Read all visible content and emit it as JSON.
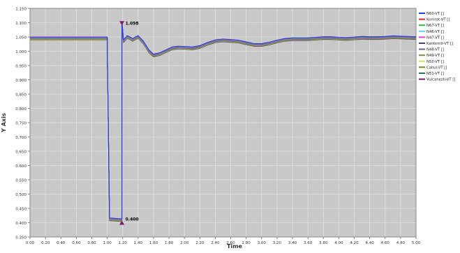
{
  "chart_data": {
    "type": "line",
    "title": "",
    "xlabel": "Time",
    "ylabel": "Y Axis",
    "xlim": [
      0.0,
      5.0
    ],
    "ylim": [
      0.35,
      1.15
    ],
    "x_ticks": [
      "0.00",
      "0.20",
      "0.40",
      "0.60",
      "0.80",
      "1.00",
      "1.20",
      "1.40",
      "1.60",
      "1.80",
      "2.00",
      "2.20",
      "2.40",
      "2.60",
      "2.80",
      "3.00",
      "3.20",
      "3.40",
      "3.60",
      "3.80",
      "4.00",
      "4.20",
      "4.40",
      "4.60",
      "4.80",
      "5.00"
    ],
    "y_ticks": [
      "0.350",
      "0.400",
      "0.450",
      "0.500",
      "0.550",
      "0.600",
      "0.650",
      "0.700",
      "0.750",
      "0.800",
      "0.850",
      "0.900",
      "0.950",
      "1.000",
      "1.050",
      "1.100",
      "1.150"
    ],
    "grid": true,
    "legend_position": "top-right",
    "series": [
      {
        "name": "N60-VT []",
        "color": "#1f3cff"
      },
      {
        "name": "Komrat-VT []",
        "color": "#e8262a"
      },
      {
        "name": "N67-VT []",
        "color": "#2ec13a"
      },
      {
        "name": "N46-VT []",
        "color": "#56d6e8"
      },
      {
        "name": "N47-VT []",
        "color": "#ec3ee6"
      },
      {
        "name": "Kantemir-VT []",
        "color": "#3d3d9e"
      },
      {
        "name": "N48-VT []",
        "color": "#5c6a86"
      },
      {
        "name": "N49-VT []",
        "color": "#7a8c4a"
      },
      {
        "name": "N50-VT []",
        "color": "#e6d84a"
      },
      {
        "name": "Cahul-VT []",
        "color": "#6e8a1e"
      },
      {
        "name": "N51-VT []",
        "color": "#2a7a5a"
      },
      {
        "name": "Vulcanesti-VT []",
        "color": "#7a1a6a"
      }
    ],
    "curve": {
      "x": [
        0.0,
        1.0,
        1.001,
        1.03,
        1.17,
        1.19,
        1.191,
        1.21,
        1.26,
        1.33,
        1.4,
        1.47,
        1.54,
        1.6,
        1.68,
        1.76,
        1.84,
        1.92,
        2.0,
        2.1,
        2.2,
        2.3,
        2.4,
        2.5,
        2.6,
        2.7,
        2.8,
        2.9,
        3.0,
        3.1,
        3.2,
        3.3,
        3.4,
        3.5,
        3.6,
        3.7,
        3.8,
        3.9,
        4.0,
        4.1,
        4.2,
        4.3,
        4.4,
        4.5,
        4.6,
        4.7,
        4.8,
        4.9,
        5.0
      ],
      "y": [
        1.045,
        1.045,
        1.0,
        0.412,
        0.409,
        0.408,
        1.1,
        1.035,
        1.05,
        1.04,
        1.05,
        1.03,
        1.0,
        0.985,
        0.99,
        1.0,
        1.01,
        1.013,
        1.012,
        1.01,
        1.015,
        1.026,
        1.035,
        1.038,
        1.036,
        1.034,
        1.028,
        1.022,
        1.022,
        1.027,
        1.034,
        1.04,
        1.042,
        1.042,
        1.042,
        1.044,
        1.046,
        1.046,
        1.044,
        1.043,
        1.045,
        1.047,
        1.046,
        1.046,
        1.047,
        1.049,
        1.048,
        1.047,
        1.046
      ]
    },
    "annotations": [
      {
        "label": "1.098",
        "x": 1.19,
        "y": 1.098,
        "marker": "triangle-down"
      },
      {
        "label": "0.400",
        "x": 1.19,
        "y": 0.4,
        "marker": "triangle-up"
      }
    ]
  }
}
